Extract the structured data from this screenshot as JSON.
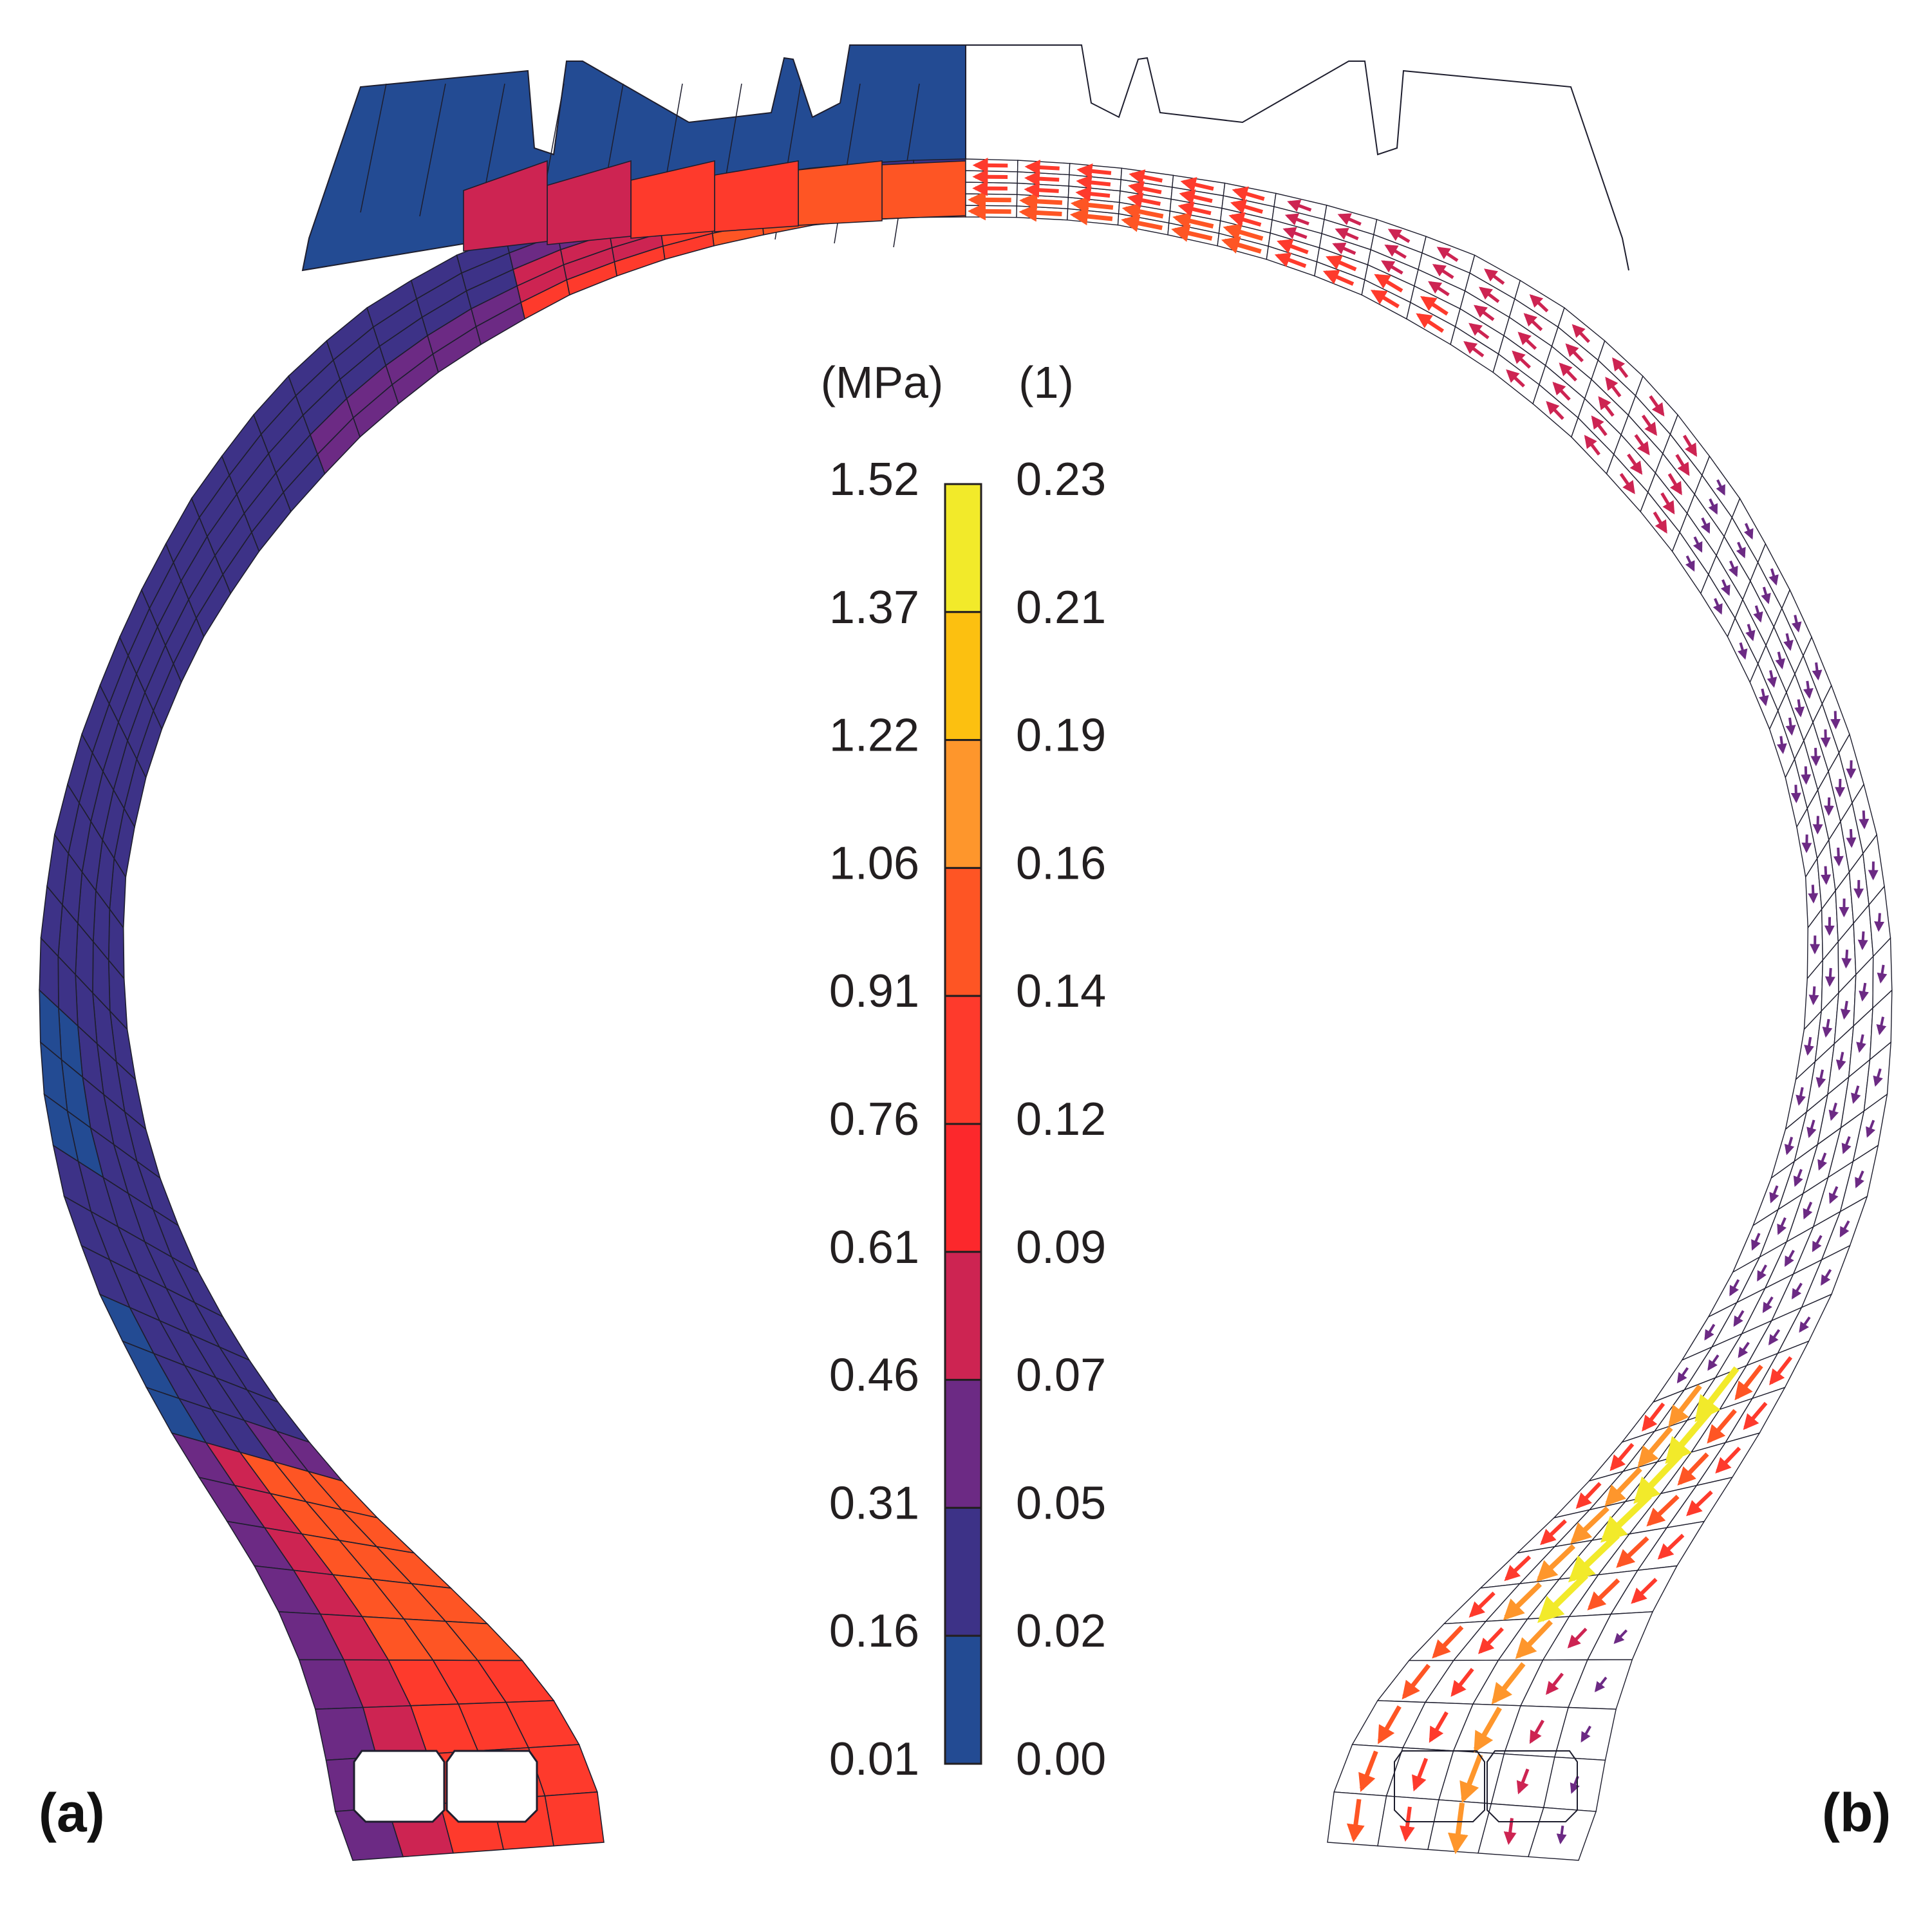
{
  "panels": {
    "a": {
      "label": "(a)"
    },
    "b": {
      "label": "(b)"
    }
  },
  "colorbar": {
    "left_unit": "(MPa)",
    "right_unit": "(1)",
    "left_ticks": [
      "1.52",
      "1.37",
      "1.22",
      "1.06",
      "0.91",
      "0.76",
      "0.61",
      "0.46",
      "0.31",
      "0.16",
      "0.01"
    ],
    "right_ticks": [
      "0.23",
      "0.21",
      "0.19",
      "0.16",
      "0.14",
      "0.12",
      "0.09",
      "0.07",
      "0.05",
      "0.02",
      "0.00"
    ],
    "bands_top_to_bottom": [
      "#f2ea2a",
      "#fcc010",
      "#fe962c",
      "#fe5524",
      "#fe3a2c",
      "#fc282c",
      "#cd2452",
      "#6c2a84",
      "#3d3287",
      "#234b93"
    ]
  },
  "palette": {
    "mesh_line": "#1e1e2e",
    "outline": "#222222"
  }
}
